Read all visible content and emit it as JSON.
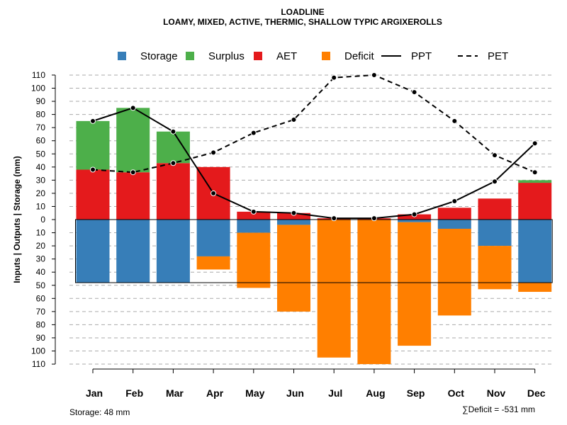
{
  "chart_data": {
    "type": "bar",
    "title": "LOADLINE",
    "subtitle": "LOAMY, MIXED, ACTIVE, THERMIC, SHALLOW TYPIC ARGIXEROLLS",
    "ylabel": "Inputs | Outputs | Storage    (mm)",
    "xlabel": "",
    "categories": [
      "Jan",
      "Feb",
      "Mar",
      "Apr",
      "May",
      "Jun",
      "Jul",
      "Aug",
      "Sep",
      "Oct",
      "Nov",
      "Dec"
    ],
    "ylim": [
      -110,
      110
    ],
    "yticks": [
      110,
      100,
      90,
      80,
      70,
      60,
      50,
      40,
      30,
      20,
      10,
      0,
      10,
      20,
      30,
      40,
      50,
      60,
      70,
      80,
      90,
      100,
      110
    ],
    "grid": true,
    "legend_position": "top",
    "colors": {
      "storage": "#377EB8",
      "surplus": "#4DAF4A",
      "aet": "#E41A1C",
      "deficit": "#FF7F00"
    },
    "legend": [
      {
        "label": "Storage",
        "kind": "box",
        "color": "#377EB8"
      },
      {
        "label": "Surplus",
        "kind": "box",
        "color": "#4DAF4A"
      },
      {
        "label": "AET",
        "kind": "box",
        "color": "#E41A1C"
      },
      {
        "label": "Deficit",
        "kind": "box",
        "color": "#FF7F00"
      },
      {
        "label": "PPT",
        "kind": "solid-line",
        "color": "#000000"
      },
      {
        "label": "PET",
        "kind": "dashed-line",
        "color": "#000000"
      }
    ],
    "series": [
      {
        "name": "AET",
        "values": [
          38,
          36,
          43,
          40,
          6,
          5,
          1,
          1,
          4,
          9,
          16,
          28
        ]
      },
      {
        "name": "Surplus",
        "values": [
          37,
          49,
          24,
          0,
          0,
          0,
          0,
          0,
          0,
          0,
          0,
          2
        ]
      },
      {
        "name": "Storage",
        "values": [
          48,
          48,
          48,
          28,
          10,
          4,
          0,
          0,
          2,
          7,
          20,
          48
        ]
      },
      {
        "name": "Deficit",
        "values": [
          0,
          0,
          0,
          10,
          42,
          66,
          105,
          110,
          94,
          66,
          33,
          7
        ]
      },
      {
        "name": "Deficit offset",
        "values": [
          0,
          0,
          0,
          28,
          10,
          4,
          0,
          0,
          2,
          7,
          20,
          48
        ]
      },
      {
        "name": "PPT",
        "values": [
          75,
          85,
          67,
          20,
          6,
          5,
          1,
          1,
          4,
          14,
          29,
          58
        ]
      },
      {
        "name": "PET",
        "values": [
          38,
          36,
          43,
          51,
          66,
          76,
          108,
          110,
          97,
          75,
          49,
          36
        ]
      }
    ],
    "storage_capacity": 48,
    "footer_left": "Storage: 48 mm",
    "footer_right": "∑Deficit = -531 mm"
  }
}
